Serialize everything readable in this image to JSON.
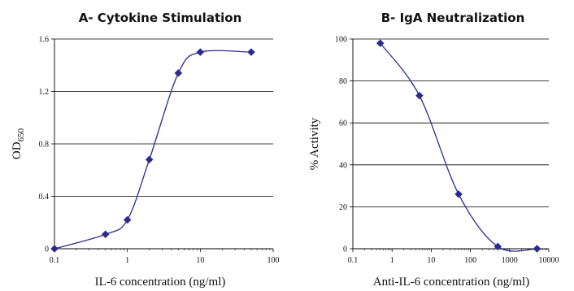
{
  "chart_data": [
    {
      "type": "line",
      "title": "A- Cytokine Stimulation",
      "xlabel": "IL-6 concentration (ng/ml)",
      "ylabel_main": "OD",
      "ylabel_sub": "650",
      "xscale": "log",
      "xlim": [
        0.1,
        100
      ],
      "ylim": [
        0,
        1.6
      ],
      "xticks": [
        0.1,
        1,
        10,
        100
      ],
      "xtick_labels": [
        "0.1",
        "1",
        "10",
        "100"
      ],
      "yticks": [
        0,
        0.4,
        0.8,
        1.2,
        1.6
      ],
      "ytick_labels": [
        "0",
        "0.4",
        "0.8",
        "1.2",
        "1.6"
      ],
      "grid": "horizontal",
      "color": "#2b2b8f",
      "points": [
        {
          "x": 0.1,
          "y": 0.0
        },
        {
          "x": 0.5,
          "y": 0.11
        },
        {
          "x": 1,
          "y": 0.22
        },
        {
          "x": 2,
          "y": 0.68
        },
        {
          "x": 5,
          "y": 1.34
        },
        {
          "x": 10,
          "y": 1.5
        },
        {
          "x": 50,
          "y": 1.5
        }
      ]
    },
    {
      "type": "line",
      "title": "B- IgA Neutralization",
      "xlabel": "Anti-IL-6 concentration (ng/ml)",
      "ylabel": "% Activity",
      "xscale": "log",
      "xlim": [
        0.1,
        10000
      ],
      "ylim": [
        0,
        100
      ],
      "xticks": [
        0.1,
        1,
        10,
        100,
        1000,
        10000
      ],
      "xtick_labels": [
        "0.1",
        "1",
        "10",
        "100",
        "1000",
        "10000"
      ],
      "yticks": [
        0,
        20,
        40,
        60,
        80,
        100
      ],
      "ytick_labels": [
        "0",
        "20",
        "40",
        "60",
        "80",
        "100"
      ],
      "grid": "horizontal",
      "color": "#2b2b8f",
      "points": [
        {
          "x": 0.5,
          "y": 98
        },
        {
          "x": 5,
          "y": 73
        },
        {
          "x": 50,
          "y": 26
        },
        {
          "x": 500,
          "y": 1
        },
        {
          "x": 5000,
          "y": 0
        }
      ]
    }
  ]
}
